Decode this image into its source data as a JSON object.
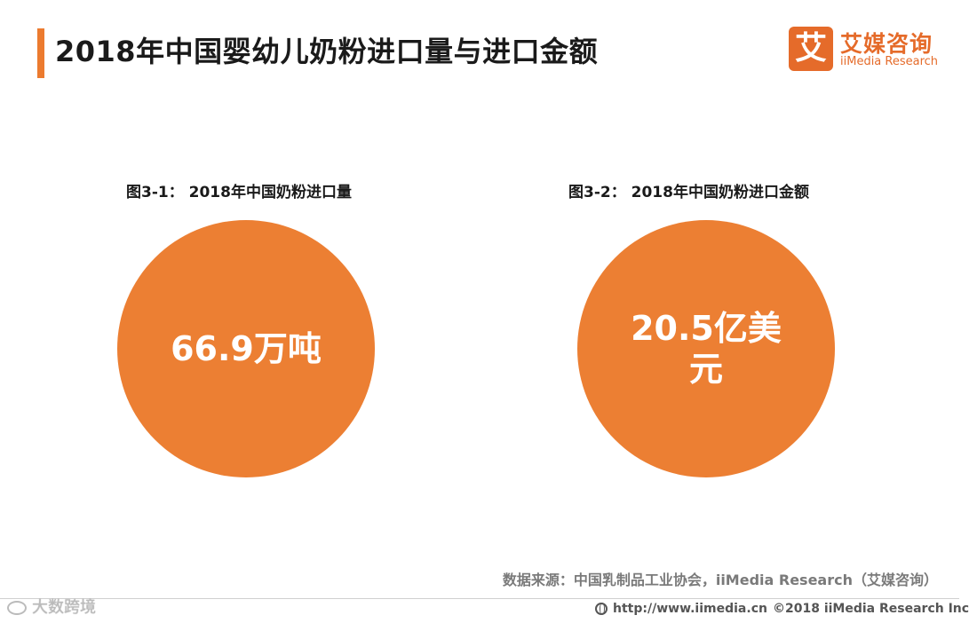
{
  "header": {
    "title": "2018年中国婴幼儿奶粉进口量与进口金额",
    "accent_color": "#ec7b2f"
  },
  "logo": {
    "mark": "艾",
    "name_cn": "艾媒咨询",
    "name_en": "iiMedia Research"
  },
  "chart_data": [
    {
      "type": "bubble",
      "title": "图3-1：  2018年中国奶粉进口量",
      "value": 66.9,
      "unit": "万吨",
      "label": "66.9万吨",
      "color": "#ec7f33"
    },
    {
      "type": "bubble",
      "title": "图3-2：  2018年中国奶粉进口金额",
      "value": 20.5,
      "unit": "亿美元",
      "label": "20.5亿美元",
      "color": "#ec7f33"
    }
  ],
  "source": "数据来源：中国乳制品工业协会，iiMedia Research（艾媒咨询）",
  "footer": {
    "url": "http://www.iimedia.cn",
    "copyright": "©2018  iiMedia Research  Inc"
  },
  "watermark": {
    "icon": "weibo-icon",
    "text": "大数跨境"
  }
}
